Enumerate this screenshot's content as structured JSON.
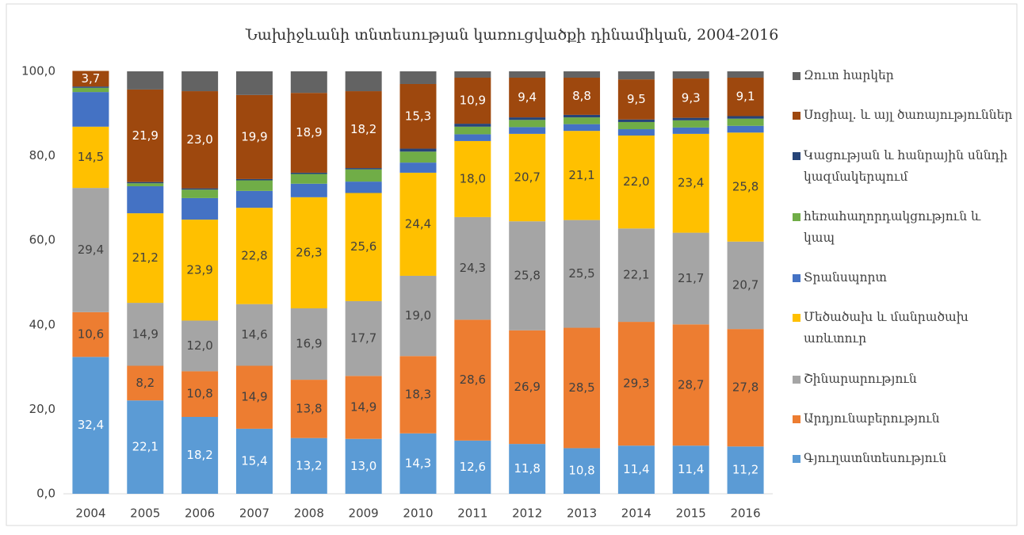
{
  "chart_data": {
    "type": "stacked_bar",
    "title": "Նախիջևանի տնտեսության կառուցվածքի դինամիկան, 2004-2016",
    "categories": [
      "2004",
      "2005",
      "2006",
      "2007",
      "2008",
      "2009",
      "2010",
      "2011",
      "2012",
      "2013",
      "2014",
      "2015",
      "2016"
    ],
    "ylim": [
      0,
      100
    ],
    "yticks": [
      {
        "value": 0,
        "label": "0,0"
      },
      {
        "value": 20,
        "label": "20,0"
      },
      {
        "value": 40,
        "label": "40,0"
      },
      {
        "value": 60,
        "label": "60,0"
      },
      {
        "value": 80,
        "label": "80,0"
      },
      {
        "value": 100,
        "label": "100,0"
      }
    ],
    "legend": "right",
    "series": [
      {
        "name": "Գյուղատնտեսություն",
        "color": "#5b9bd5",
        "values": [
          32.4,
          22.1,
          18.2,
          15.4,
          13.2,
          13.0,
          14.3,
          12.6,
          11.8,
          10.8,
          11.4,
          11.4,
          11.2
        ],
        "value_labels": [
          "32,4",
          "22,1",
          "18,2",
          "15,4",
          "13,2",
          "13,0",
          "14,3",
          "12,6",
          "11,8",
          "10,8",
          "11,4",
          "11,4",
          "11,2"
        ]
      },
      {
        "name": "Արդյունաբերություն",
        "color": "#ed7d31",
        "values": [
          10.6,
          8.2,
          10.8,
          14.9,
          13.8,
          14.9,
          18.3,
          28.6,
          26.9,
          28.5,
          29.3,
          28.7,
          27.8
        ],
        "value_labels": [
          "10,6",
          "8,2",
          "10,8",
          "14,9",
          "13,8",
          "14,9",
          "18,3",
          "28,6",
          "26,9",
          "28,5",
          "29,3",
          "28,7",
          "27,8"
        ]
      },
      {
        "name": "Շինարարություն",
        "color": "#a5a5a5",
        "values": [
          29.4,
          14.9,
          12.0,
          14.6,
          16.9,
          17.7,
          19.0,
          24.3,
          25.8,
          25.5,
          22.1,
          21.7,
          20.7
        ],
        "value_labels": [
          "29,4",
          "14,9",
          "12,0",
          "14,6",
          "16,9",
          "17,7",
          "19,0",
          "24,3",
          "25,8",
          "25,5",
          "22,1",
          "21,7",
          "20,7"
        ]
      },
      {
        "name": "Մեծածախ և մանրածախ առևտուր",
        "color": "#ffc000",
        "values": [
          14.5,
          21.2,
          23.9,
          22.8,
          26.3,
          25.6,
          24.4,
          18.0,
          20.7,
          21.1,
          22.0,
          23.4,
          25.8
        ],
        "value_labels": [
          "14,5",
          "21,2",
          "23,9",
          "22,8",
          "26,3",
          "25,6",
          "24,4",
          "18,0",
          "20,7",
          "21,1",
          "22,0",
          "23,4",
          "25,8"
        ]
      },
      {
        "name": "Տրանսպորտ",
        "color": "#4472c4",
        "values": [
          8.2,
          6.4,
          5.1,
          4.0,
          3.2,
          2.7,
          2.4,
          1.6,
          1.6,
          1.6,
          1.5,
          1.5,
          1.6
        ]
      },
      {
        "name": "հեռահաղորդակցություն և կապ",
        "color": "#70ad47",
        "values": [
          1.0,
          0.7,
          2.0,
          2.5,
          2.3,
          2.9,
          2.6,
          1.8,
          1.7,
          1.6,
          1.7,
          1.7,
          1.7
        ]
      },
      {
        "name": "Կացության և հանրային սննդի կազմակերպում",
        "color": "#264478",
        "values": [
          0.3,
          0.3,
          0.3,
          0.3,
          0.3,
          0.3,
          0.7,
          0.7,
          0.6,
          0.6,
          0.6,
          0.6,
          0.6
        ]
      },
      {
        "name": "Սոցիալ. և այլ ծառայություններ",
        "color": "#9e480e",
        "values": [
          3.7,
          21.9,
          23.0,
          19.9,
          18.9,
          18.2,
          15.3,
          10.9,
          9.4,
          8.8,
          9.5,
          9.3,
          9.1
        ],
        "value_labels": [
          "3,7",
          "21,9",
          "23,0",
          "19,9",
          "18,9",
          "18,2",
          "15,3",
          "10,9",
          "9,4",
          "8,8",
          "9,5",
          "9,3",
          "9,1"
        ]
      },
      {
        "name": "Զուտ հարկեր",
        "color": "#636363",
        "values": [
          0,
          4.3,
          4.7,
          5.6,
          5.1,
          4.7,
          3.0,
          1.5,
          1.5,
          1.5,
          1.9,
          1.7,
          1.5
        ]
      }
    ]
  }
}
